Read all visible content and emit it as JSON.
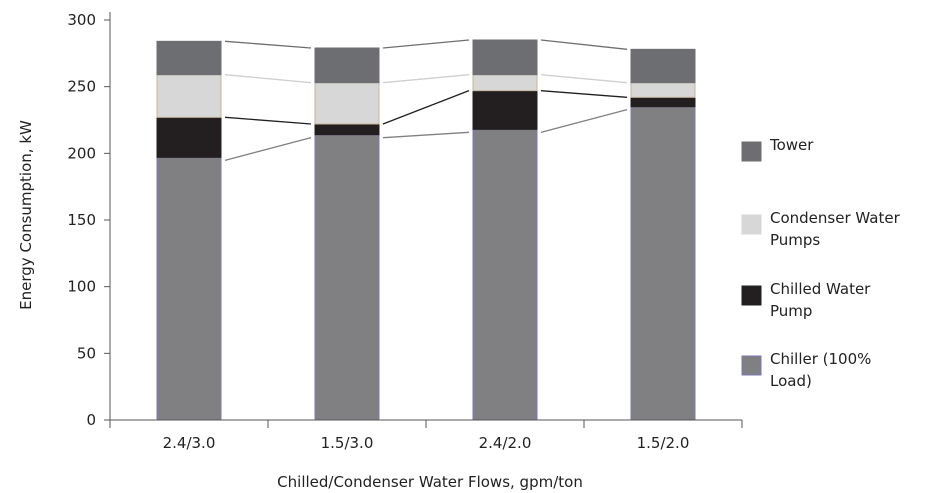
{
  "chart_data": {
    "type": "bar",
    "stacked": true,
    "categories": [
      "2.4/3.0",
      "1.5/3.0",
      "2.4/2.0",
      "1.5/2.0"
    ],
    "series": [
      {
        "name": "Chiller (100% Load)",
        "values": [
          197,
          214,
          218,
          235
        ],
        "color": "#808083"
      },
      {
        "name": "Chilled Water Pump",
        "values": [
          30,
          8,
          29,
          7
        ],
        "color": "#231f20"
      },
      {
        "name": "Condenser Water Pumps",
        "values": [
          32,
          31,
          12,
          11
        ],
        "color": "#d7d7d7"
      },
      {
        "name": "Tower",
        "values": [
          25,
          26,
          26,
          25
        ],
        "color": "#6d6e71"
      }
    ],
    "title": "",
    "xlabel": "Chilled/Condenser Water Flows, gpm/ton",
    "ylabel": "Energy Consumption, kW",
    "ylim": [
      0,
      300
    ],
    "yticks": [
      "0",
      "50",
      "100",
      "150",
      "200",
      "250",
      "300"
    ],
    "grid": false,
    "legend_placement": "right",
    "connector_colors": [
      "#6d6e71",
      "#cfcfcf",
      "#231f20",
      "#808083"
    ]
  }
}
